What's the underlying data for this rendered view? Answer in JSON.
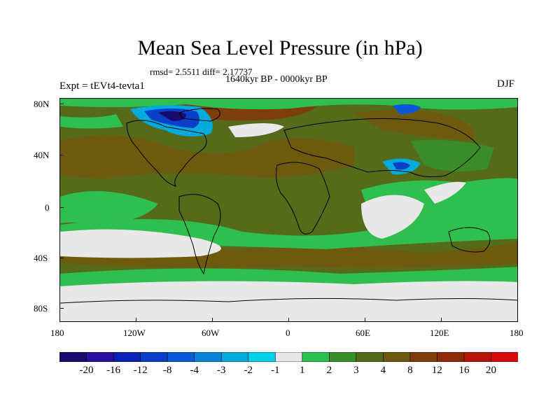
{
  "title": "Mean Sea Level Pressure (in hPa)",
  "stats": "rmsd= 2.5511 diff= 2.17737",
  "period": "1640kyr BP - 0000kyr BP",
  "experiment": "Expt = tEVt4-tevta1",
  "season": "DJF",
  "y_axis_labels": [
    "80N",
    "40N",
    "0",
    "40S",
    "80S"
  ],
  "x_axis_labels": [
    "180",
    "120W",
    "60W",
    "0",
    "60E",
    "120E",
    "180"
  ],
  "colorbar": {
    "colors": [
      "#1a0a6e",
      "#2a0ea0",
      "#0a22b4",
      "#0a40c8",
      "#0a5ad8",
      "#0a82d6",
      "#00aadc",
      "#00d0ea",
      "#e8e8e8",
      "#2fbf4e",
      "#3a8c2a",
      "#556b1a",
      "#6e5a0c",
      "#7e3e0c",
      "#8e2a0a",
      "#b4160a",
      "#d40a0a"
    ],
    "labels": [
      "-20",
      "-16",
      "-12",
      "-8",
      "-4",
      "-3",
      "-2",
      "-1",
      "1",
      "2",
      "3",
      "4",
      "8",
      "12",
      "16",
      "20"
    ]
  }
}
